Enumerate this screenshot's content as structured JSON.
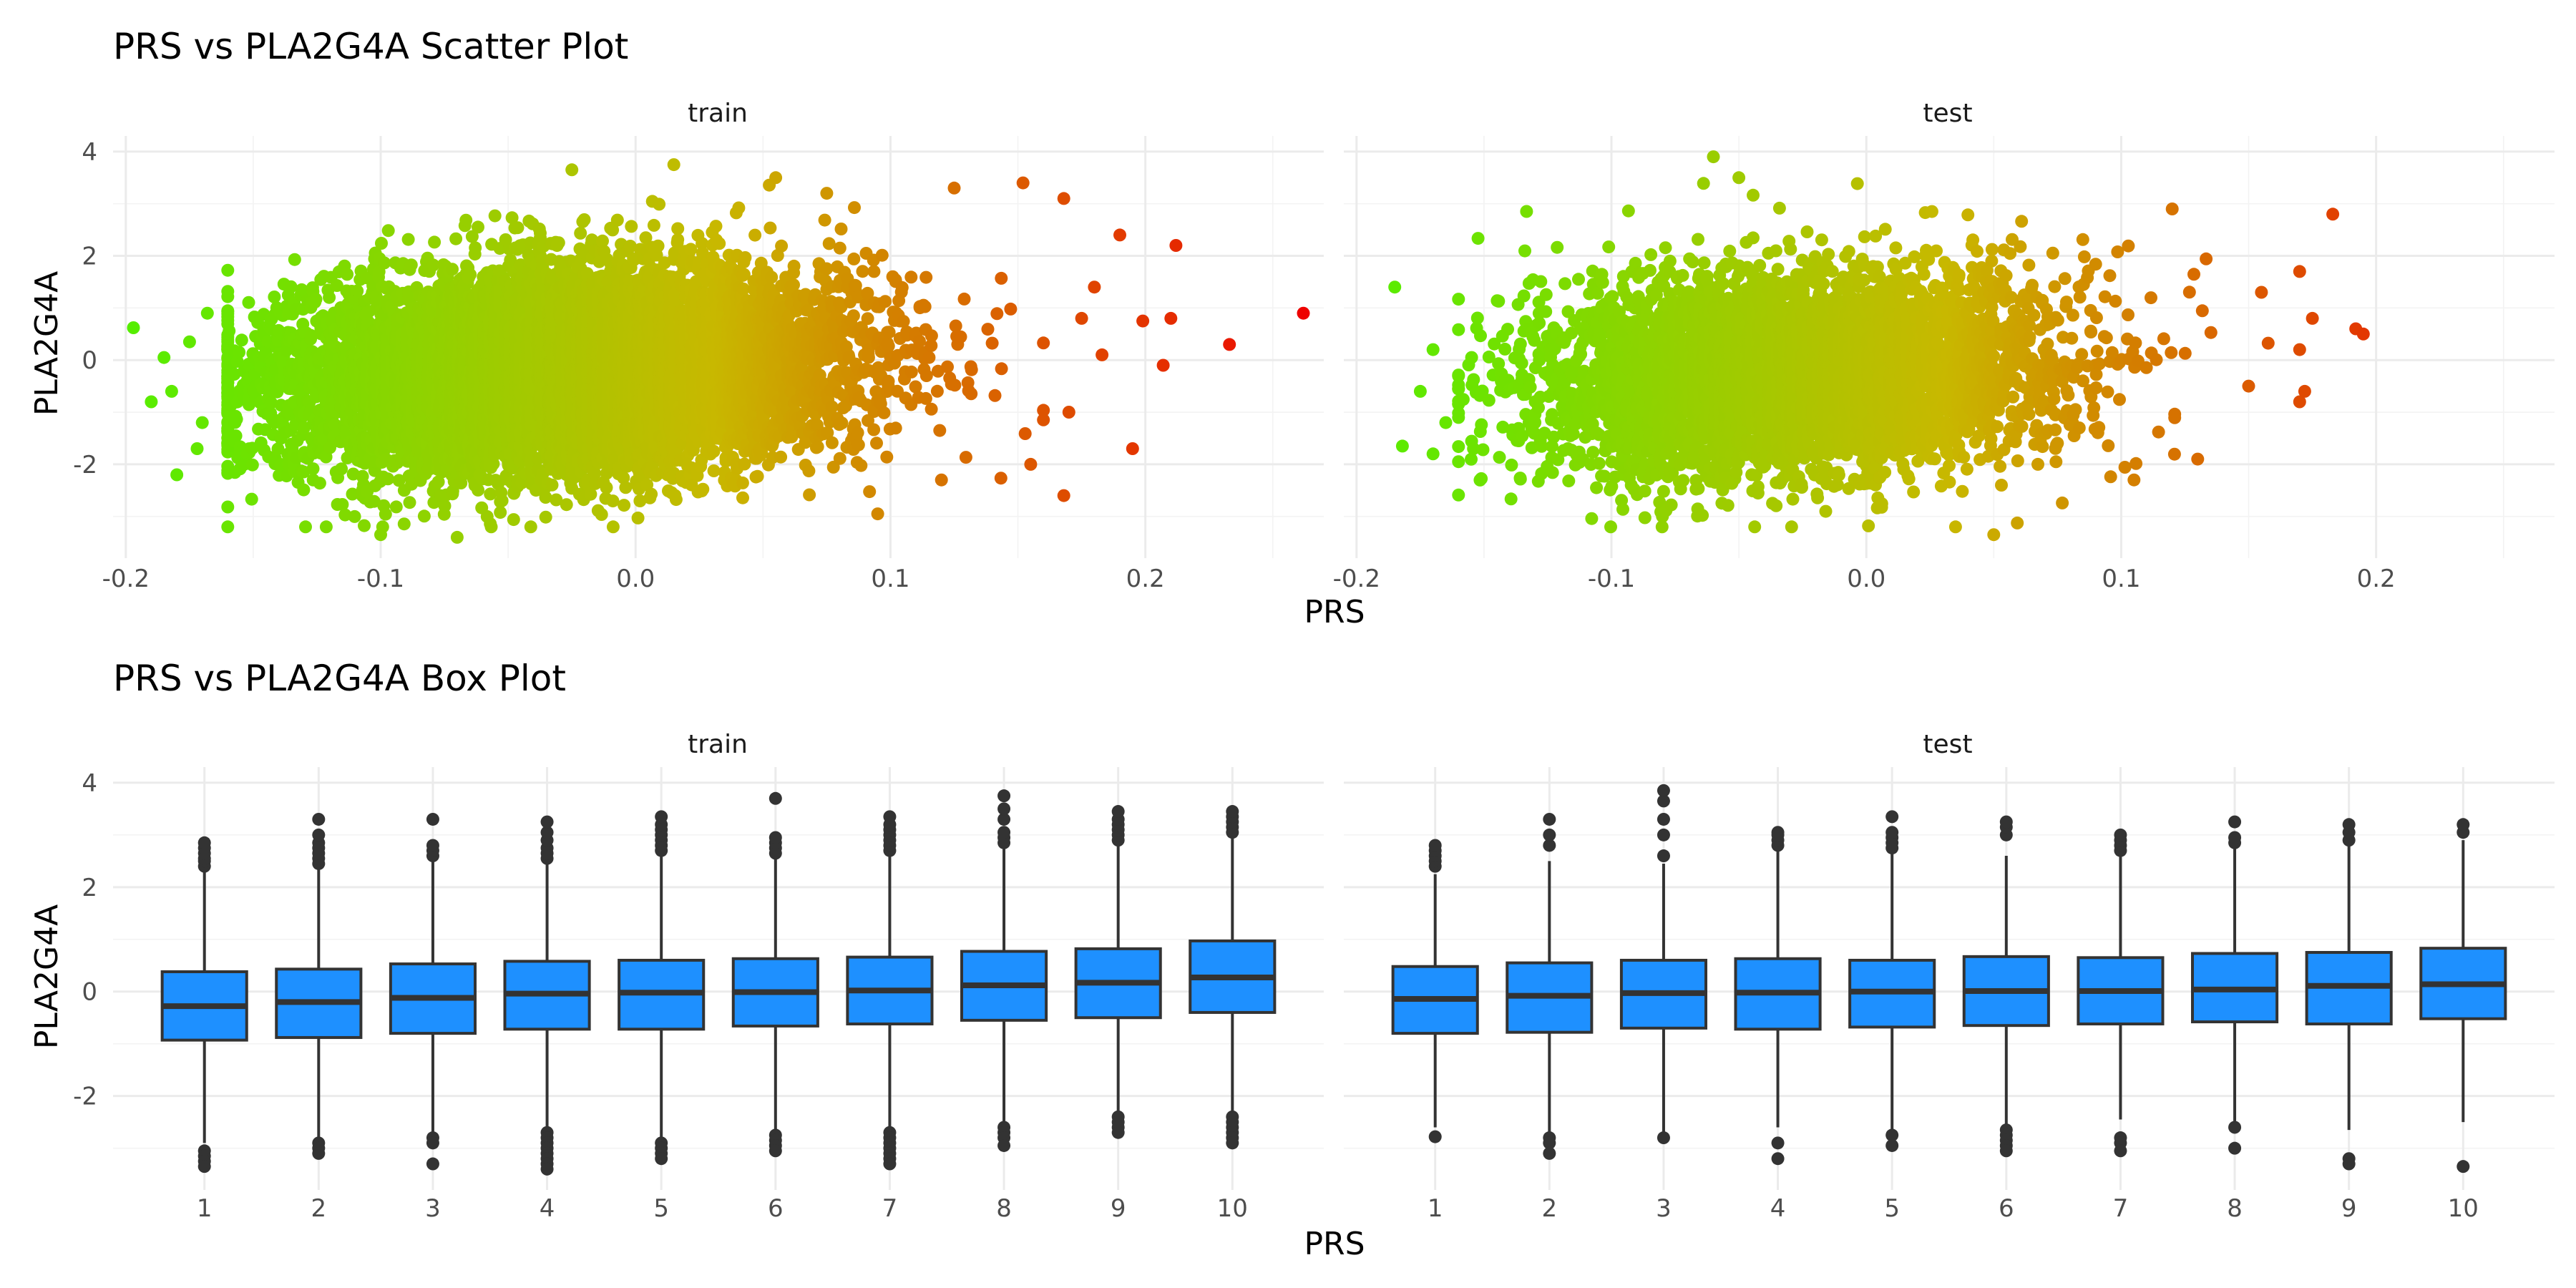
{
  "figure": {
    "scatter_title": "PRS vs PLA2G4A Scatter Plot",
    "box_title": "PRS vs PLA2G4A Box Plot",
    "x_title": "PRS",
    "y_title": "PLA2G4A",
    "facets": [
      "train",
      "test"
    ]
  },
  "colors": {
    "low": "#55ee00",
    "mid": "#c8b800",
    "high": "#ee0000",
    "box_fill": "#1e90ff",
    "box_line": "#333333"
  },
  "chart_data": [
    {
      "type": "scatter",
      "title": "PRS vs PLA2G4A Scatter Plot",
      "xlabel": "PRS",
      "ylabel": "PLA2G4A",
      "facets": [
        "train",
        "test"
      ],
      "xlim": [
        -0.205,
        0.27
      ],
      "ylim": [
        -3.8,
        4.3
      ],
      "x_ticks": [
        -0.2,
        -0.1,
        0.0,
        0.1,
        0.2
      ],
      "x_tick_labels": [
        "-0.2",
        "-0.1",
        "0.0",
        "0.1",
        "0.2"
      ],
      "y_ticks": [
        -2,
        0,
        2,
        4
      ],
      "y_tick_labels": [
        "-2",
        "0",
        "2",
        "4"
      ],
      "color_scale": {
        "variable": "PRS",
        "low": "#55ee00",
        "high": "#ee0000",
        "legend": "none"
      },
      "grid": true,
      "panels": [
        {
          "facet": "train",
          "cloud": {
            "x_mean": -0.03,
            "x_sd": 0.055,
            "y_mean": -0.2,
            "y_sd": 0.95,
            "y_slope_per_prs": 2.5,
            "n": 9000
          },
          "points": [
            {
              "x": 0.262,
              "y": 0.9
            },
            {
              "x": 0.233,
              "y": 0.3
            },
            {
              "x": 0.212,
              "y": 2.2
            },
            {
              "x": 0.21,
              "y": 0.8
            },
            {
              "x": 0.207,
              "y": -0.1
            },
            {
              "x": 0.199,
              "y": 0.75
            },
            {
              "x": 0.19,
              "y": 2.4
            },
            {
              "x": 0.195,
              "y": -1.7
            },
            {
              "x": 0.152,
              "y": 3.4
            },
            {
              "x": 0.168,
              "y": 3.1
            },
            {
              "x": 0.18,
              "y": 1.4
            },
            {
              "x": 0.183,
              "y": 0.1
            },
            {
              "x": 0.17,
              "y": -1.0
            },
            {
              "x": 0.168,
              "y": -2.6
            },
            {
              "x": 0.175,
              "y": 0.8
            },
            {
              "x": 0.155,
              "y": -2.0
            },
            {
              "x": 0.125,
              "y": 3.3
            },
            {
              "x": 0.12,
              "y": -2.3
            },
            {
              "x": -0.197,
              "y": 0.62
            },
            {
              "x": -0.19,
              "y": -0.8
            },
            {
              "x": -0.185,
              "y": 0.05
            },
            {
              "x": -0.18,
              "y": -2.2
            },
            {
              "x": -0.182,
              "y": -0.6
            },
            {
              "x": -0.175,
              "y": 0.35
            },
            {
              "x": -0.172,
              "y": -1.7
            },
            {
              "x": -0.168,
              "y": 0.9
            },
            {
              "x": -0.17,
              "y": -1.2
            },
            {
              "x": -0.1,
              "y": -3.35
            },
            {
              "x": -0.07,
              "y": -3.4
            },
            {
              "x": 0.015,
              "y": 3.75
            },
            {
              "x": -0.025,
              "y": 3.65
            },
            {
              "x": 0.055,
              "y": 3.5
            },
            {
              "x": 0.095,
              "y": -2.95
            },
            {
              "x": 0.075,
              "y": 3.2
            }
          ]
        },
        {
          "facet": "test",
          "cloud": {
            "x_mean": -0.03,
            "x_sd": 0.05,
            "y_mean": -0.25,
            "y_sd": 0.95,
            "y_slope_per_prs": 2.0,
            "n": 5000
          },
          "points": [
            {
              "x": 0.183,
              "y": 2.8
            },
            {
              "x": 0.195,
              "y": 0.5
            },
            {
              "x": 0.192,
              "y": 0.6
            },
            {
              "x": 0.17,
              "y": 1.7
            },
            {
              "x": 0.17,
              "y": 0.2
            },
            {
              "x": 0.17,
              "y": -0.8
            },
            {
              "x": 0.172,
              "y": -0.6
            },
            {
              "x": 0.175,
              "y": 0.8
            },
            {
              "x": 0.155,
              "y": 1.3
            },
            {
              "x": 0.15,
              "y": -0.5
            },
            {
              "x": 0.13,
              "y": -1.9
            },
            {
              "x": 0.12,
              "y": 2.9
            },
            {
              "x": -0.185,
              "y": 1.4
            },
            {
              "x": -0.182,
              "y": -1.65
            },
            {
              "x": -0.175,
              "y": -0.6
            },
            {
              "x": -0.17,
              "y": 0.2
            },
            {
              "x": -0.165,
              "y": -1.2
            },
            {
              "x": -0.17,
              "y": -1.8
            },
            {
              "x": -0.06,
              "y": 3.9
            },
            {
              "x": -0.05,
              "y": 3.5
            },
            {
              "x": 0.035,
              "y": -3.2
            },
            {
              "x": 0.05,
              "y": -3.35
            },
            {
              "x": -0.08,
              "y": -3.0
            },
            {
              "x": 0.105,
              "y": -2.3
            }
          ]
        }
      ]
    },
    {
      "type": "box",
      "title": "PRS vs PLA2G4A Box Plot",
      "xlabel": "PRS",
      "ylabel": "PLA2G4A",
      "facets": [
        "train",
        "test"
      ],
      "categories": [
        "1",
        "2",
        "3",
        "4",
        "5",
        "6",
        "7",
        "8",
        "9",
        "10"
      ],
      "ylim": [
        -3.8,
        4.3
      ],
      "y_ticks": [
        -2,
        0,
        2,
        4
      ],
      "y_tick_labels": [
        "-2",
        "0",
        "2",
        "4"
      ],
      "fill": "#1e90ff",
      "grid": true,
      "panels": [
        {
          "facet": "train",
          "boxes": [
            {
              "q1": -0.93,
              "median": -0.28,
              "q3": 0.38,
              "whisker_low": -2.9,
              "whisker_high": 2.3,
              "outliers": [
                2.4,
                2.5,
                2.55,
                2.65,
                2.75,
                2.85,
                -3.05,
                -3.15,
                -3.25,
                -3.35
              ]
            },
            {
              "q1": -0.88,
              "median": -0.2,
              "q3": 0.43,
              "whisker_low": -2.85,
              "whisker_high": 2.4,
              "outliers": [
                2.45,
                2.55,
                2.65,
                2.75,
                2.85,
                3.0,
                3.3,
                -2.9,
                -3.0,
                -3.1
              ]
            },
            {
              "q1": -0.8,
              "median": -0.12,
              "q3": 0.53,
              "whisker_low": -2.75,
              "whisker_high": 2.5,
              "outliers": [
                2.6,
                2.7,
                2.8,
                3.3,
                -2.8,
                -2.9,
                -3.3
              ]
            },
            {
              "q1": -0.72,
              "median": -0.04,
              "q3": 0.58,
              "whisker_low": -2.65,
              "whisker_high": 2.5,
              "outliers": [
                2.55,
                2.65,
                2.75,
                2.9,
                3.05,
                3.25,
                -2.7,
                -2.8,
                -2.9,
                -3.0,
                -3.1,
                -3.2,
                -3.3,
                -3.4
              ]
            },
            {
              "q1": -0.72,
              "median": -0.02,
              "q3": 0.6,
              "whisker_low": -2.85,
              "whisker_high": 2.6,
              "outliers": [
                2.7,
                2.8,
                2.9,
                3.0,
                3.1,
                3.2,
                3.35,
                -2.9,
                -3.0,
                -3.1,
                -3.2
              ]
            },
            {
              "q1": -0.66,
              "median": -0.01,
              "q3": 0.63,
              "whisker_low": -2.65,
              "whisker_high": 2.55,
              "outliers": [
                2.65,
                2.75,
                2.85,
                2.95,
                3.7,
                -2.75,
                -2.85,
                -2.95,
                -3.05
              ]
            },
            {
              "q1": -0.62,
              "median": 0.02,
              "q3": 0.66,
              "whisker_low": -2.6,
              "whisker_high": 2.6,
              "outliers": [
                2.7,
                2.8,
                2.9,
                3.0,
                3.1,
                3.2,
                3.35,
                -2.7,
                -2.8,
                -2.9,
                -3.0,
                -3.1,
                -3.2,
                -3.3
              ]
            },
            {
              "q1": -0.55,
              "median": 0.12,
              "q3": 0.77,
              "whisker_low": -2.5,
              "whisker_high": 2.75,
              "outliers": [
                2.85,
                2.95,
                3.05,
                3.3,
                3.5,
                3.75,
                -2.6,
                -2.7,
                -2.8,
                -2.95
              ]
            },
            {
              "q1": -0.5,
              "median": 0.17,
              "q3": 0.82,
              "whisker_low": -2.35,
              "whisker_high": 2.8,
              "outliers": [
                2.9,
                3.0,
                3.1,
                3.2,
                3.3,
                3.45,
                -2.4,
                -2.5,
                -2.6,
                -2.7
              ]
            },
            {
              "q1": -0.4,
              "median": 0.27,
              "q3": 0.97,
              "whisker_low": -2.3,
              "whisker_high": 3.0,
              "outliers": [
                3.05,
                3.15,
                3.25,
                3.35,
                3.45,
                -2.4,
                -2.5,
                -2.6,
                -2.7,
                -2.8,
                -2.9
              ]
            }
          ]
        },
        {
          "facet": "test",
          "boxes": [
            {
              "q1": -0.8,
              "median": -0.14,
              "q3": 0.48,
              "whisker_low": -2.6,
              "whisker_high": 2.25,
              "outliers": [
                2.4,
                2.5,
                2.6,
                2.7,
                2.8,
                -2.78
              ]
            },
            {
              "q1": -0.78,
              "median": -0.08,
              "q3": 0.55,
              "whisker_low": -2.7,
              "whisker_high": 2.5,
              "outliers": [
                2.8,
                3.0,
                3.3,
                -2.8,
                -2.9,
                -3.1
              ]
            },
            {
              "q1": -0.7,
              "median": -0.03,
              "q3": 0.6,
              "whisker_low": -2.7,
              "whisker_high": 2.45,
              "outliers": [
                2.6,
                3.0,
                3.3,
                3.65,
                3.85,
                -2.8
              ]
            },
            {
              "q1": -0.72,
              "median": -0.02,
              "q3": 0.63,
              "whisker_low": -2.6,
              "whisker_high": 2.7,
              "outliers": [
                2.8,
                2.9,
                3.0,
                3.05,
                -2.9,
                -3.2
              ]
            },
            {
              "q1": -0.68,
              "median": 0.0,
              "q3": 0.6,
              "whisker_low": -2.65,
              "whisker_high": 2.65,
              "outliers": [
                2.75,
                2.85,
                2.95,
                3.05,
                3.35,
                -2.75,
                -2.95
              ]
            },
            {
              "q1": -0.65,
              "median": 0.01,
              "q3": 0.67,
              "whisker_low": -2.55,
              "whisker_high": 2.6,
              "outliers": [
                3.0,
                3.15,
                3.25,
                -2.65,
                -2.75,
                -2.85,
                -2.95,
                -3.05
              ]
            },
            {
              "q1": -0.62,
              "median": 0.01,
              "q3": 0.65,
              "whisker_low": -2.45,
              "whisker_high": 2.6,
              "outliers": [
                2.7,
                2.8,
                2.9,
                3.0,
                -2.8,
                -2.9,
                -3.05
              ]
            },
            {
              "q1": -0.58,
              "median": 0.04,
              "q3": 0.73,
              "whisker_low": -2.55,
              "whisker_high": 2.75,
              "outliers": [
                2.85,
                2.95,
                3.25,
                -2.6,
                -3.0
              ]
            },
            {
              "q1": -0.62,
              "median": 0.11,
              "q3": 0.75,
              "whisker_low": -2.65,
              "whisker_high": 2.8,
              "outliers": [
                2.9,
                3.05,
                3.2,
                -3.2,
                -3.3
              ]
            },
            {
              "q1": -0.52,
              "median": 0.14,
              "q3": 0.83,
              "whisker_low": -2.5,
              "whisker_high": 2.9,
              "outliers": [
                3.05,
                3.2,
                -3.35
              ]
            }
          ]
        }
      ]
    }
  ]
}
